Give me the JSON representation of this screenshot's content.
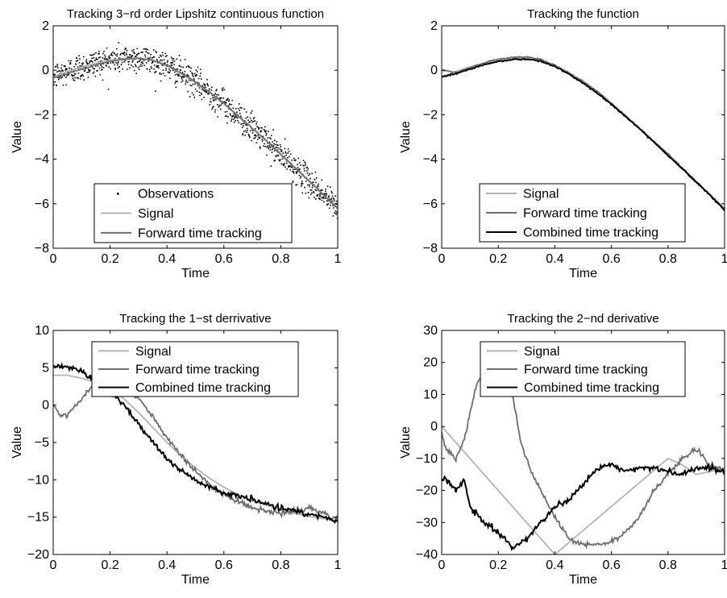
{
  "colors": {
    "observations": "#000000",
    "signal": "#b4b4b4",
    "forward": "#6e6e6e",
    "combined": "#000000",
    "axes": "#000000",
    "background": "#ffffff"
  },
  "chart_data": [
    {
      "type": "line",
      "title": "Tracking 3−rd order Lipshitz continuous function",
      "xlabel": "Time",
      "ylabel": "Value",
      "xlim": [
        0,
        1
      ],
      "ylim": [
        -8,
        2
      ],
      "xticks": [
        0,
        0.2,
        0.4,
        0.6,
        0.8,
        1
      ],
      "xtick_labels": [
        "0",
        "0.2",
        "0.4",
        "0.6",
        "0.8",
        "1"
      ],
      "yticks": [
        -8,
        -6,
        -4,
        -2,
        0,
        2
      ],
      "ytick_labels": [
        "−8",
        "−6",
        "−4",
        "−2",
        "0",
        "2"
      ],
      "grid": false,
      "legend_position": "bottom-center",
      "series": [
        {
          "name": "Observations",
          "style": "dots",
          "noise_sd": 0.32,
          "x": [
            0,
            0.05,
            0.1,
            0.15,
            0.2,
            0.25,
            0.3,
            0.35,
            0.4,
            0.45,
            0.5,
            0.55,
            0.6,
            0.65,
            0.7,
            0.75,
            0.8,
            0.85,
            0.9,
            0.95,
            1.0
          ],
          "values": [
            -0.3,
            -0.05,
            0.15,
            0.32,
            0.45,
            0.53,
            0.55,
            0.45,
            0.2,
            -0.15,
            -0.55,
            -1.0,
            -1.5,
            -2.05,
            -2.6,
            -3.2,
            -3.8,
            -4.4,
            -5.0,
            -5.6,
            -6.2
          ]
        },
        {
          "name": "Signal",
          "style": "line",
          "x": [
            0,
            0.05,
            0.1,
            0.15,
            0.2,
            0.25,
            0.3,
            0.35,
            0.4,
            0.45,
            0.5,
            0.55,
            0.6,
            0.65,
            0.7,
            0.75,
            0.8,
            0.85,
            0.9,
            0.95,
            1.0
          ],
          "values": [
            -0.3,
            -0.05,
            0.15,
            0.32,
            0.45,
            0.53,
            0.55,
            0.45,
            0.2,
            -0.15,
            -0.55,
            -1.0,
            -1.5,
            -2.05,
            -2.6,
            -3.2,
            -3.8,
            -4.4,
            -5.0,
            -5.6,
            -6.2
          ]
        },
        {
          "name": "Forward time tracking",
          "style": "line",
          "x": [
            0,
            0.05,
            0.1,
            0.15,
            0.2,
            0.25,
            0.3,
            0.35,
            0.4,
            0.45,
            0.5,
            0.55,
            0.6,
            0.65,
            0.7,
            0.75,
            0.8,
            0.85,
            0.9,
            0.95,
            1.0
          ],
          "values": [
            -0.35,
            -0.15,
            0.05,
            0.25,
            0.4,
            0.5,
            0.52,
            0.45,
            0.22,
            -0.12,
            -0.52,
            -0.98,
            -1.5,
            -2.05,
            -2.6,
            -3.18,
            -3.78,
            -4.38,
            -4.98,
            -5.6,
            -6.2
          ]
        }
      ]
    },
    {
      "type": "line",
      "title": "Tracking the function",
      "xlabel": "Time",
      "ylabel": "Value",
      "xlim": [
        0,
        1
      ],
      "ylim": [
        -8,
        2
      ],
      "xticks": [
        0,
        0.2,
        0.4,
        0.6,
        0.8,
        1
      ],
      "xtick_labels": [
        "0",
        "0.2",
        "0.4",
        "0.6",
        "0.8",
        "1"
      ],
      "yticks": [
        -8,
        -6,
        -4,
        -2,
        0,
        2
      ],
      "ytick_labels": [
        "−8",
        "−6",
        "−4",
        "−2",
        "0",
        "2"
      ],
      "grid": false,
      "legend_position": "bottom-center",
      "series": [
        {
          "name": "Signal",
          "x": [
            0,
            0.05,
            0.1,
            0.15,
            0.2,
            0.25,
            0.3,
            0.35,
            0.4,
            0.45,
            0.5,
            0.55,
            0.6,
            0.65,
            0.7,
            0.75,
            0.8,
            0.85,
            0.9,
            0.95,
            1.0
          ],
          "values": [
            -0.3,
            -0.05,
            0.15,
            0.32,
            0.45,
            0.53,
            0.55,
            0.45,
            0.2,
            -0.15,
            -0.55,
            -1.0,
            -1.5,
            -2.05,
            -2.6,
            -3.2,
            -3.8,
            -4.4,
            -5.0,
            -5.6,
            -6.2
          ]
        },
        {
          "name": "Forward time tracking",
          "x": [
            0,
            0.05,
            0.1,
            0.15,
            0.2,
            0.25,
            0.3,
            0.35,
            0.4,
            0.45,
            0.5,
            0.55,
            0.6,
            0.65,
            0.7,
            0.75,
            0.8,
            0.85,
            0.9,
            0.95,
            1.0
          ],
          "values": [
            0.0,
            -0.1,
            0.1,
            0.35,
            0.5,
            0.58,
            0.6,
            0.48,
            0.22,
            -0.12,
            -0.5,
            -0.95,
            -1.48,
            -2.05,
            -2.62,
            -3.2,
            -3.75,
            -4.38,
            -5.0,
            -5.62,
            -6.25
          ]
        },
        {
          "name": "Combined time tracking",
          "x": [
            0,
            0.05,
            0.1,
            0.15,
            0.2,
            0.25,
            0.3,
            0.35,
            0.4,
            0.45,
            0.5,
            0.55,
            0.6,
            0.65,
            0.7,
            0.75,
            0.8,
            0.85,
            0.9,
            0.95,
            1.0
          ],
          "values": [
            -0.3,
            -0.15,
            0.05,
            0.25,
            0.4,
            0.48,
            0.5,
            0.42,
            0.18,
            -0.17,
            -0.58,
            -1.03,
            -1.53,
            -2.08,
            -2.63,
            -3.23,
            -3.83,
            -4.43,
            -5.03,
            -5.63,
            -6.3
          ]
        }
      ]
    },
    {
      "type": "line",
      "title": "Tracking the 1−st derrivative",
      "xlabel": "Time",
      "ylabel": "Value",
      "xlim": [
        0,
        1
      ],
      "ylim": [
        -20,
        10
      ],
      "xticks": [
        0,
        0.2,
        0.4,
        0.6,
        0.8,
        1
      ],
      "xtick_labels": [
        "0",
        "0.2",
        "0.4",
        "0.6",
        "0.8",
        "1"
      ],
      "yticks": [
        -20,
        -15,
        -10,
        -5,
        0,
        5,
        10
      ],
      "ytick_labels": [
        "−20",
        "−15",
        "−10",
        "−5",
        "0",
        "5",
        "10"
      ],
      "grid": false,
      "legend_position": "top-right",
      "series": [
        {
          "name": "Signal",
          "x": [
            0,
            0.05,
            0.1,
            0.15,
            0.2,
            0.25,
            0.3,
            0.35,
            0.4,
            0.45,
            0.5,
            0.55,
            0.6,
            0.65,
            0.7,
            0.75,
            0.8,
            0.85,
            0.9,
            0.95,
            1.0
          ],
          "values": [
            4.0,
            4.0,
            3.6,
            3.0,
            2.2,
            0.8,
            -1.0,
            -3.0,
            -5.0,
            -6.8,
            -8.4,
            -9.8,
            -11.0,
            -12.0,
            -12.8,
            -13.4,
            -14.0,
            -14.5,
            -14.9,
            -15.2,
            -15.5
          ]
        },
        {
          "name": "Forward time tracking",
          "x": [
            0,
            0.02,
            0.05,
            0.1,
            0.15,
            0.2,
            0.25,
            0.3,
            0.35,
            0.4,
            0.45,
            0.5,
            0.55,
            0.6,
            0.65,
            0.7,
            0.75,
            0.8,
            0.85,
            0.9,
            0.95,
            1.0
          ],
          "values": [
            0.0,
            -1.2,
            -1.5,
            1.0,
            3.0,
            3.0,
            2.0,
            1.0,
            -1.5,
            -4.5,
            -6.8,
            -8.8,
            -10.6,
            -12.0,
            -12.8,
            -13.8,
            -14.3,
            -14.5,
            -14.3,
            -13.8,
            -14.4,
            -15.5
          ]
        },
        {
          "name": "Combined time tracking",
          "x": [
            0,
            0.05,
            0.1,
            0.15,
            0.2,
            0.25,
            0.3,
            0.35,
            0.4,
            0.45,
            0.5,
            0.55,
            0.6,
            0.65,
            0.7,
            0.75,
            0.8,
            0.85,
            0.9,
            0.95,
            1.0
          ],
          "values": [
            5.3,
            5.1,
            4.6,
            3.3,
            2.0,
            0.0,
            -2.5,
            -5.0,
            -7.2,
            -8.8,
            -10.0,
            -11.0,
            -11.8,
            -12.2,
            -12.6,
            -13.2,
            -13.8,
            -14.2,
            -14.6,
            -15.0,
            -15.6
          ]
        }
      ]
    },
    {
      "type": "line",
      "title": "Tracking the 2−nd derivative",
      "xlabel": "Time",
      "ylabel": "Value",
      "xlim": [
        0,
        1
      ],
      "ylim": [
        -40,
        30
      ],
      "xticks": [
        0,
        0.2,
        0.4,
        0.6,
        0.8,
        1
      ],
      "xtick_labels": [
        "0",
        "0.2",
        "0.4",
        "0.6",
        "0.8",
        "1"
      ],
      "yticks": [
        -40,
        -30,
        -20,
        -10,
        0,
        10,
        20,
        30
      ],
      "ytick_labels": [
        "−40",
        "−30",
        "−20",
        "−10",
        "0",
        "10",
        "20",
        "30"
      ],
      "grid": false,
      "legend_position": "top-right",
      "series": [
        {
          "name": "Signal",
          "x": [
            0,
            0.4,
            0.8,
            0.85,
            0.9,
            0.95,
            1.0
          ],
          "values": [
            0,
            -40,
            -10,
            -12,
            -15,
            -14,
            -13
          ]
        },
        {
          "name": "Forward time tracking",
          "x": [
            0,
            0.02,
            0.05,
            0.08,
            0.12,
            0.15,
            0.2,
            0.25,
            0.28,
            0.32,
            0.38,
            0.4,
            0.45,
            0.5,
            0.55,
            0.6,
            0.65,
            0.7,
            0.75,
            0.8,
            0.85,
            0.9,
            0.95,
            1.0
          ],
          "values": [
            -2,
            -8,
            -10,
            -4,
            12,
            18,
            20,
            10,
            -5,
            -15,
            -25,
            -28,
            -35,
            -37,
            -37,
            -36,
            -33,
            -28,
            -20,
            -15,
            -10,
            -7,
            -12,
            -14
          ]
        },
        {
          "name": "Combined time tracking",
          "x": [
            0,
            0.02,
            0.05,
            0.08,
            0.1,
            0.15,
            0.2,
            0.25,
            0.3,
            0.35,
            0.4,
            0.45,
            0.5,
            0.55,
            0.6,
            0.65,
            0.7,
            0.75,
            0.8,
            0.85,
            0.9,
            0.95,
            1.0
          ],
          "values": [
            -16,
            -17,
            -20,
            -17,
            -25,
            -30,
            -33,
            -38,
            -35,
            -30,
            -25,
            -23,
            -18,
            -13,
            -12,
            -14,
            -13,
            -13,
            -14,
            -15,
            -13,
            -13,
            -14
          ]
        }
      ]
    }
  ]
}
